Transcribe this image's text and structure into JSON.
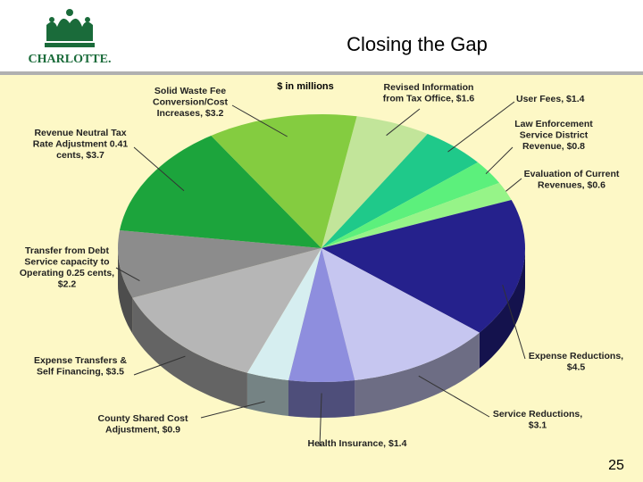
{
  "logo_text": "CHARLOTTE.",
  "page_number": "25",
  "chart_data": {
    "type": "pie3d",
    "title": "Closing the Gap",
    "subtitle": "$ in millions",
    "categories": [
      "Revised Information\nfrom Tax Office, $1.6",
      "User Fees, $1.4",
      "Law Enforcement\nService District\nRevenue, $0.8",
      "Evaluation of Current\nRevenues, $0.6",
      "Expense Reductions,\n$4.5",
      "Service Reductions,\n$3.1",
      "Health Insurance, $1.4",
      "County Shared Cost\nAdjustment, $0.9",
      "Expense Transfers &\nSelf Financing, $3.5",
      "Transfer from Debt\nService capacity  to\nOperating 0.25 cents,\n$2.2",
      "Revenue Neutral Tax\nRate Adjustment 0.41\ncents, $3.7",
      "Solid Waste Fee\nConversion/Cost\nIncreases, $3.2"
    ],
    "values": [
      1.6,
      1.4,
      0.8,
      0.6,
      4.5,
      3.1,
      1.4,
      0.9,
      3.5,
      2.2,
      3.7,
      3.2
    ],
    "colors": [
      "#c2e59a",
      "#1fc98a",
      "#5cf07c",
      "#96f488",
      "#25218c",
      "#c6c6f0",
      "#8e8ede",
      "#d6eef0",
      "#b6b6b6",
      "#8c8c8c",
      "#1ca43c",
      "#84cc40"
    ]
  }
}
